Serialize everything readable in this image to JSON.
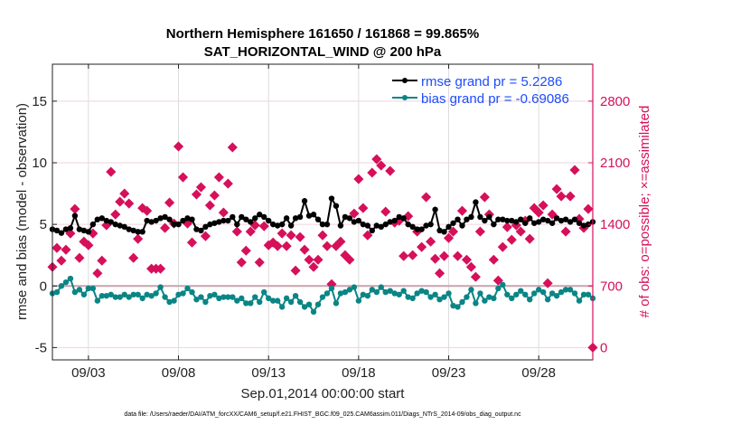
{
  "chart_data": {
    "type": "line",
    "title": [
      "Northern Hemisphere 161650 / 161868 = 99.865%",
      "SAT_HORIZONTAL_WIND @ 200 hPa"
    ],
    "xlabel": "Sep.01,2014 00:00:00 start",
    "ylabel": "rmse and bias (model - observation)",
    "ylabel_right": "# of obs: o=possible; ×=assimilated",
    "footnote": "data file: /Users/raeder/DAI/ATM_forcXX/CAM6_setup/f.e21.FHIST_BGC.f09_025.CAM6assim.011/Diags_NTrS_2014-09/obs_diag_output.nc",
    "xlim_days": [
      0,
      30
    ],
    "ylim": [
      -6,
      18
    ],
    "ylim_right": [
      -140,
      3220
    ],
    "x_ticks": [
      {
        "day": 2,
        "label": "09/03"
      },
      {
        "day": 7,
        "label": "09/08"
      },
      {
        "day": 12,
        "label": "09/13"
      },
      {
        "day": 17,
        "label": "09/18"
      },
      {
        "day": 22,
        "label": "09/23"
      },
      {
        "day": 27,
        "label": "09/28"
      }
    ],
    "y_ticks": [
      {
        "v": -5,
        "label": "-5"
      },
      {
        "v": 0,
        "label": "0"
      },
      {
        "v": 5,
        "label": "5"
      },
      {
        "v": 10,
        "label": "10"
      },
      {
        "v": 15,
        "label": "15"
      }
    ],
    "y_ticks_right": [
      {
        "v": 0,
        "label": "0"
      },
      {
        "v": 700,
        "label": "700"
      },
      {
        "v": 1400,
        "label": "1400"
      },
      {
        "v": 2100,
        "label": "2100"
      },
      {
        "v": 2800,
        "label": "2800"
      }
    ],
    "grid": true,
    "legend_position": "top-right",
    "x_step_days": 0.25,
    "series": [
      {
        "name": "rmse grand pr = 5.2286",
        "color": "#000000",
        "values": [
          4.6,
          4.5,
          4.3,
          4.6,
          4.7,
          5.7,
          4.6,
          4.5,
          4.4,
          5.0,
          5.4,
          5.5,
          5.3,
          5.2,
          5.0,
          4.9,
          4.8,
          4.6,
          4.5,
          4.4,
          4.4,
          5.3,
          5.2,
          5.3,
          5.5,
          5.6,
          5.4,
          5.0,
          5.0,
          5.3,
          5.5,
          5.4,
          4.6,
          4.5,
          4.8,
          5.0,
          5.1,
          5.2,
          5.3,
          5.3,
          5.6,
          5.0,
          5.6,
          5.4,
          5.2,
          5.5,
          5.8,
          5.6,
          5.3,
          5.0,
          4.9,
          5.0,
          5.5,
          4.9,
          5.5,
          5.6,
          6.9,
          5.7,
          5.8,
          5.4,
          5.0,
          5.0,
          7.1,
          6.5,
          4.9,
          5.6,
          5.5,
          5.2,
          5.3,
          5.0,
          4.9,
          4.5,
          4.9,
          4.8,
          5.0,
          5.2,
          5.3,
          5.6,
          5.5,
          5.0,
          4.8,
          4.6,
          4.6,
          4.9,
          5.0,
          6.2,
          4.5,
          4.4,
          4.8,
          5.1,
          5.4,
          4.9,
          5.4,
          5.6,
          6.8,
          5.6,
          5.3,
          5.6,
          5.0,
          5.4,
          5.4,
          5.3,
          5.3,
          5.2,
          5.4,
          5.1,
          5.5,
          5.1,
          5.2,
          5.4,
          5.3,
          5.1,
          5.5,
          5.3,
          5.4,
          5.2,
          5.4,
          5.1,
          4.9,
          5.0,
          5.2
        ]
      },
      {
        "name": "bias grand pr = -0.69086",
        "color": "#0a8585",
        "values": [
          -0.6,
          -0.5,
          0.0,
          0.3,
          0.6,
          -0.5,
          -0.3,
          -0.7,
          -0.2,
          -0.2,
          -1.2,
          -0.8,
          -0.8,
          -0.7,
          -0.9,
          -0.9,
          -0.7,
          -0.9,
          -0.7,
          -0.7,
          -1.0,
          -0.7,
          -0.8,
          -0.6,
          -0.1,
          -0.9,
          -1.3,
          -1.2,
          -0.7,
          -0.6,
          -0.2,
          -0.5,
          -1.1,
          -0.9,
          -1.3,
          -0.8,
          -0.7,
          -1.0,
          -0.9,
          -0.9,
          -0.9,
          -1.2,
          -1.0,
          -1.4,
          -1.4,
          -0.9,
          -1.3,
          -0.5,
          -1.0,
          -1.2,
          -1.2,
          -1.7,
          -1.0,
          -1.3,
          -0.8,
          -1.3,
          -1.7,
          -1.5,
          -2.1,
          -1.5,
          -0.9,
          -0.6,
          -0.2,
          -1.4,
          -0.6,
          -0.5,
          -0.3,
          -0.1,
          -1.2,
          -0.7,
          -0.8,
          -0.3,
          -0.5,
          -0.1,
          -0.5,
          -0.4,
          -0.6,
          -0.7,
          -0.4,
          -0.9,
          -1.0,
          -0.6,
          -0.4,
          -0.5,
          -0.9,
          -0.7,
          -1.1,
          -0.9,
          -0.6,
          -1.6,
          -1.7,
          -1.3,
          -0.9,
          -0.3,
          -1.4,
          -0.6,
          -1.2,
          -0.9,
          -1.0,
          -0.2,
          0.1,
          -0.7,
          -1.0,
          -0.7,
          -0.4,
          -0.7,
          -1.1,
          -0.6,
          -0.3,
          -0.5,
          -1.1,
          -0.6,
          -0.8,
          -0.5,
          -0.3,
          -0.3,
          -0.6,
          -1.2,
          -0.7,
          -0.7,
          -1.0
        ]
      },
      {
        "name": "obs assimilated",
        "axis": "right",
        "color": "#d6105a",
        "values": [
          916,
          1132,
          988,
          1112,
          1297,
          1575,
          1019,
          1204,
          1163,
          1297,
          844,
          988,
          1390,
          1997,
          1513,
          1657,
          1750,
          1637,
          1019,
          1235,
          1585,
          1554,
          896,
          896,
          896,
          1359,
          1647,
          1410,
          2285,
          1935,
          1410,
          1194,
          1740,
          1822,
          1266,
          1616,
          1729,
          1935,
          1534,
          1863,
          2275,
          1318,
          968,
          1101,
          1318,
          1390,
          968,
          1379,
          1163,
          1194,
          1153,
          1297,
          1153,
          1276,
          875,
          1256,
          1112,
          998,
          916,
          998,
          1276,
          1153,
          720,
          1153,
          1204,
          1050,
          998,
          1523,
          1915,
          1585,
          1276,
          1987,
          2141,
          2069,
          1544,
          2007,
          1420,
          1441,
          1040,
          1493,
          1050,
          1318,
          1143,
          1709,
          1204,
          1009,
          844,
          1040,
          1245,
          1318,
          1040,
          1554,
          998,
          916,
          803,
          1318,
          1709,
          1513,
          998,
          762,
          1143,
          1369,
          1225,
          1390,
          1318,
          1441,
          1235,
          1585,
          1534,
          1616,
          731,
          1513,
          1801,
          1719,
          1318,
          1719,
          2018,
          1462,
          1359,
          1575,
          0
        ]
      }
    ]
  }
}
